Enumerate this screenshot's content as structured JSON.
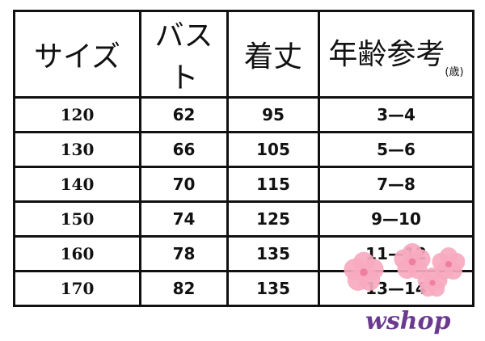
{
  "headers": {
    "size": "サイズ",
    "bust": "バスト",
    "length": "着丈",
    "age": "年齢参考",
    "age_unit": "(歳)"
  },
  "rows": [
    {
      "size": "120",
      "bust": "62",
      "length": "95",
      "age": "3—4"
    },
    {
      "size": "130",
      "bust": "66",
      "length": "105",
      "age": "5—6"
    },
    {
      "size": "140",
      "bust": "70",
      "length": "115",
      "age": "7—8"
    },
    {
      "size": "150",
      "bust": "74",
      "length": "125",
      "age": "9—10"
    },
    {
      "size": "160",
      "bust": "78",
      "length": "135",
      "age": "11—12"
    },
    {
      "size": "170",
      "bust": "82",
      "length": "135",
      "age": "13—14"
    }
  ],
  "logo": "wshop",
  "colors": {
    "flower": "#f7a9c0",
    "logo": "#6b3a8f"
  }
}
